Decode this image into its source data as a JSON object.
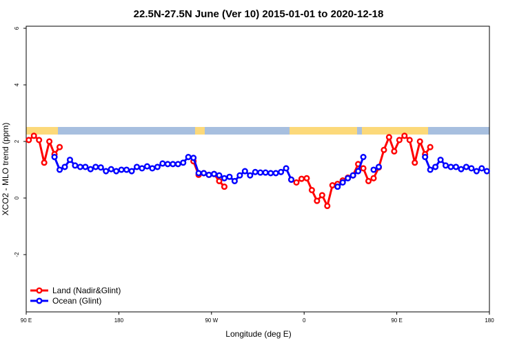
{
  "chart_data": {
    "type": "line",
    "title": "22.5N-27.5N June (Ver 10)   2015-01-01 to 2020-12-18",
    "x_label": "Longitude (deg E)",
    "y_label": "XCO2 - MLO trend (ppm)",
    "xlim": [
      90,
      540
    ],
    "xticks": [
      {
        "value": 90,
        "label": "90 E"
      },
      {
        "value": 180,
        "label": "180"
      },
      {
        "value": 270,
        "label": "90 W"
      },
      {
        "value": 360,
        "label": "0"
      },
      {
        "value": 450,
        "label": "90 E"
      },
      {
        "value": 540,
        "label": "180"
      }
    ],
    "ylim": [
      -4,
      6
    ],
    "yticks": [
      -2,
      0,
      2,
      4,
      6
    ],
    "legend": "bottom-left",
    "series": [
      {
        "name": "Land (Nadir&Glint)",
        "color": "#ff0000",
        "x": [
          92.5,
          97.5,
          102.5,
          107.5,
          112.5,
          117.5,
          122.5,
          127.5,
          252.5,
          257.5,
          262.5,
          267.5,
          272.5,
          277.5,
          282.5,
          287.5,
          347.5,
          352.5,
          357.5,
          362.5,
          367.5,
          372.5,
          377.5,
          382.5,
          387.5,
          392.5,
          397.5,
          402.5,
          407.5,
          412.5,
          417.5,
          422.5,
          427.5,
          432.5,
          437.5,
          442.5,
          447.5,
          452.5,
          457.5,
          462.5,
          467.5,
          472.5,
          477.5,
          482.5
        ],
        "values": [
          2.05,
          2.2,
          2.05,
          1.25,
          2.0,
          1.55,
          1.8,
          null,
          1.3,
          0.82,
          0.88,
          0.82,
          0.85,
          0.6,
          0.4,
          null,
          0.65,
          0.55,
          0.68,
          0.7,
          0.28,
          -0.1,
          0.1,
          -0.28,
          0.45,
          0.5,
          0.62,
          0.72,
          0.8,
          1.2,
          1.05,
          0.6,
          0.7,
          1.08,
          1.7,
          2.15,
          1.65,
          2.05,
          2.2,
          2.05,
          1.25,
          2.0,
          1.55,
          1.8
        ]
      },
      {
        "name": "Ocean (Glint)",
        "color": "#0000ff",
        "x": [
          117.5,
          122.5,
          127.5,
          132.5,
          137.5,
          142.5,
          147.5,
          152.5,
          157.5,
          162.5,
          167.5,
          172.5,
          177.5,
          182.5,
          187.5,
          192.5,
          197.5,
          202.5,
          207.5,
          212.5,
          217.5,
          222.5,
          227.5,
          232.5,
          237.5,
          242.5,
          247.5,
          252.5,
          257.5,
          262.5,
          267.5,
          272.5,
          277.5,
          282.5,
          287.5,
          292.5,
          297.5,
          302.5,
          307.5,
          312.5,
          317.5,
          322.5,
          327.5,
          332.5,
          337.5,
          342.5,
          347.5,
          352.5,
          392.5,
          397.5,
          402.5,
          407.5,
          412.5,
          417.5,
          422.5,
          427.5,
          432.5,
          437.5,
          477.5,
          482.5,
          487.5,
          492.5,
          497.5,
          502.5,
          507.5,
          512.5,
          517.5,
          522.5,
          527.5,
          532.5,
          537.5
        ],
        "values": [
          1.45,
          1.0,
          1.1,
          1.35,
          1.15,
          1.1,
          1.1,
          1.02,
          1.1,
          1.08,
          0.95,
          1.02,
          0.95,
          1.0,
          1.0,
          0.95,
          1.1,
          1.05,
          1.12,
          1.05,
          1.1,
          1.22,
          1.2,
          1.2,
          1.2,
          1.25,
          1.45,
          1.42,
          0.88,
          0.88,
          0.82,
          0.85,
          0.8,
          0.7,
          0.75,
          0.6,
          0.8,
          0.95,
          0.8,
          0.92,
          0.9,
          0.9,
          0.88,
          0.88,
          0.92,
          1.05,
          0.65,
          null,
          0.4,
          0.55,
          0.7,
          0.8,
          0.95,
          1.45,
          null,
          1.0,
          1.1,
          null,
          1.45,
          1.0,
          1.1,
          1.35,
          1.15,
          1.1,
          1.1,
          1.02,
          1.1,
          1.05,
          0.95,
          1.05,
          0.95
        ]
      }
    ]
  }
}
